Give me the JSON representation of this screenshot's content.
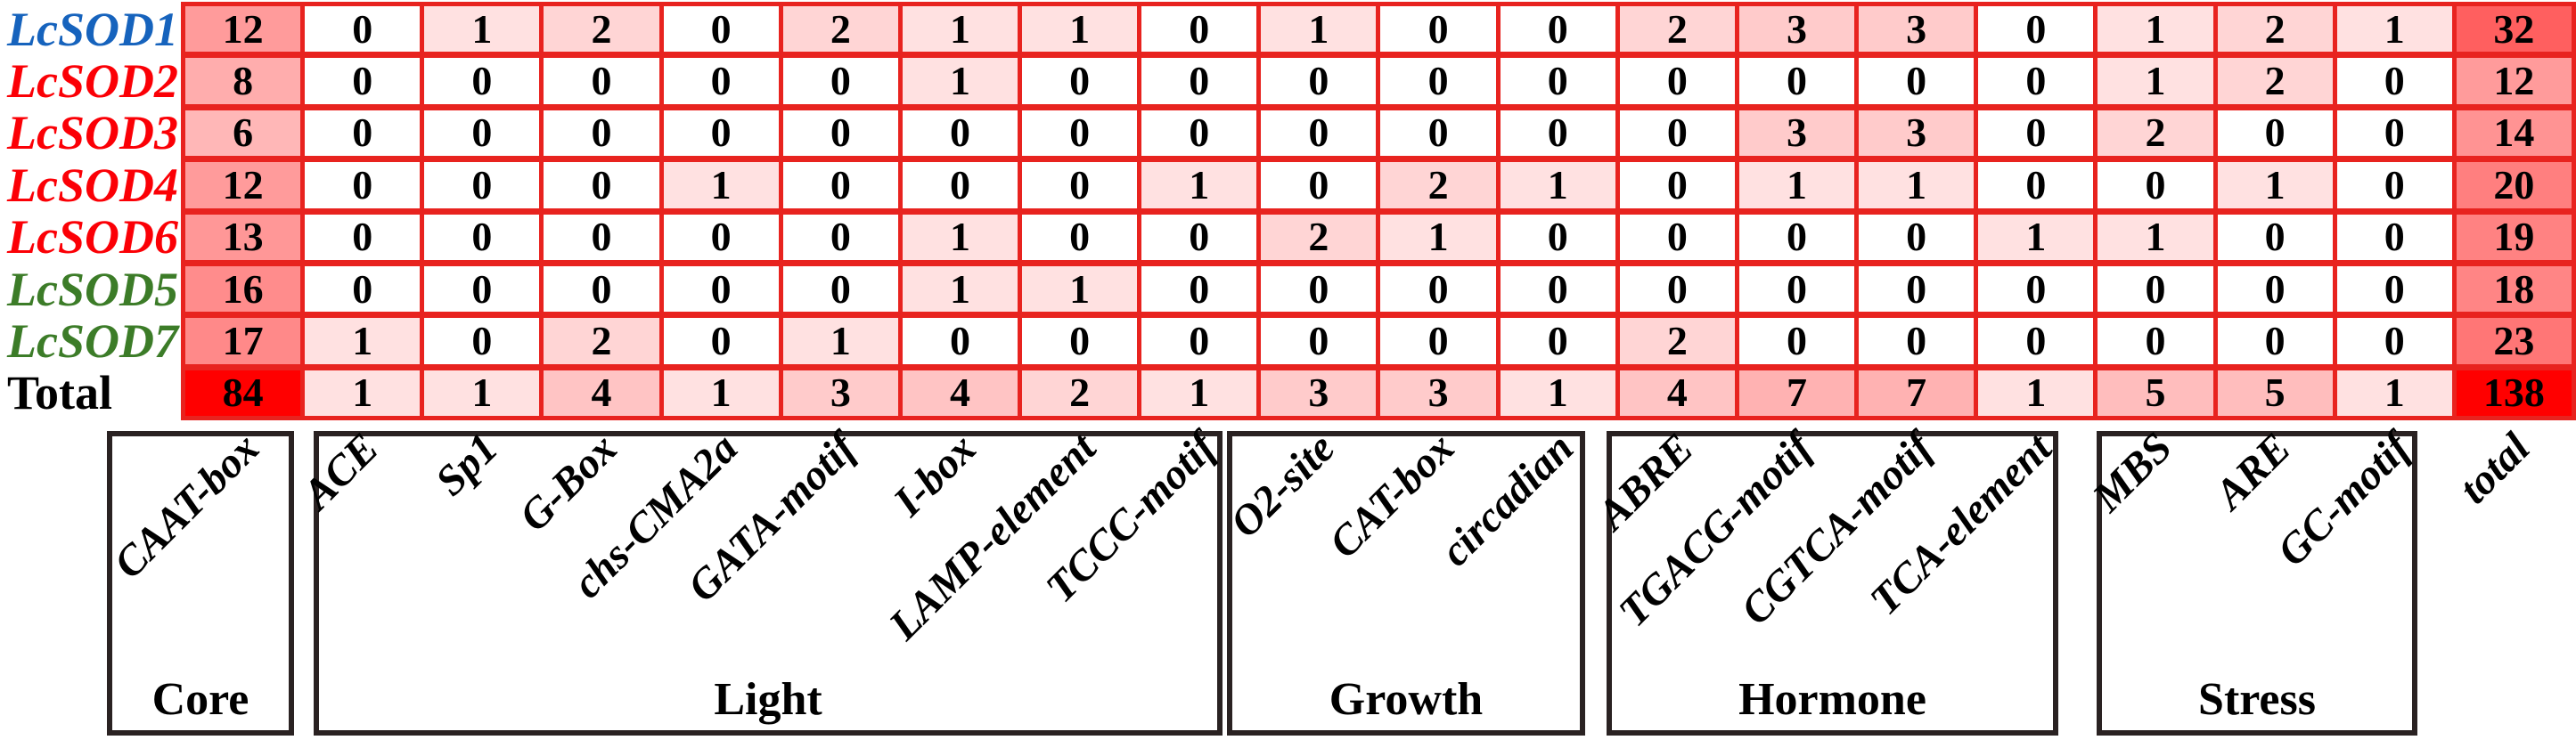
{
  "chart_data": {
    "type": "heatmap",
    "description_title": "",
    "columns": [
      "CAAT-box",
      "ACE",
      "Sp1",
      "G-Box",
      "chs-CMA2a",
      "GATA-motif",
      "I-box",
      "LAMP-element",
      "TCCC-motif",
      "O2-site",
      "CAT-box",
      "circadian",
      "ABRE",
      "TGACG-motif",
      "CGTCA-motif",
      "TCA-element",
      "MBS",
      "ARE",
      "GC-motif",
      "total"
    ],
    "rows": [
      {
        "label": "LcSOD1",
        "label_color": "#1663bd",
        "label_italic": true,
        "values": [
          12,
          0,
          1,
          2,
          0,
          2,
          1,
          1,
          0,
          1,
          0,
          0,
          2,
          3,
          3,
          0,
          1,
          2,
          1,
          32
        ]
      },
      {
        "label": "LcSOD2",
        "label_color": "#fb0006",
        "label_italic": true,
        "values": [
          8,
          0,
          0,
          0,
          0,
          0,
          1,
          0,
          0,
          0,
          0,
          0,
          0,
          0,
          0,
          0,
          1,
          2,
          0,
          12
        ]
      },
      {
        "label": "LcSOD3",
        "label_color": "#fb0006",
        "label_italic": true,
        "values": [
          6,
          0,
          0,
          0,
          0,
          0,
          0,
          0,
          0,
          0,
          0,
          0,
          0,
          3,
          3,
          0,
          2,
          0,
          0,
          14
        ]
      },
      {
        "label": "LcSOD4",
        "label_color": "#fb0006",
        "label_italic": true,
        "values": [
          12,
          0,
          0,
          0,
          1,
          0,
          0,
          0,
          1,
          0,
          2,
          1,
          0,
          1,
          1,
          0,
          0,
          1,
          0,
          20
        ]
      },
      {
        "label": "LcSOD6",
        "label_color": "#fb0006",
        "label_italic": true,
        "values": [
          13,
          0,
          0,
          0,
          0,
          0,
          1,
          0,
          0,
          2,
          1,
          0,
          0,
          0,
          0,
          1,
          1,
          0,
          0,
          19
        ]
      },
      {
        "label": "LcSOD5",
        "label_color": "#3c7c28",
        "label_italic": true,
        "values": [
          16,
          0,
          0,
          0,
          0,
          0,
          1,
          1,
          0,
          0,
          0,
          0,
          0,
          0,
          0,
          0,
          0,
          0,
          0,
          18
        ]
      },
      {
        "label": "LcSOD7",
        "label_color": "#3c7c28",
        "label_italic": true,
        "values": [
          17,
          1,
          0,
          2,
          0,
          1,
          0,
          0,
          0,
          0,
          0,
          0,
          2,
          0,
          0,
          0,
          0,
          0,
          0,
          23
        ]
      },
      {
        "label": "Total",
        "label_color": "#000000",
        "label_italic": false,
        "values": [
          84,
          1,
          1,
          4,
          1,
          3,
          4,
          2,
          1,
          3,
          3,
          1,
          4,
          7,
          7,
          1,
          5,
          5,
          1,
          138
        ]
      }
    ],
    "column_groups": [
      {
        "label": "Core",
        "col_start": 0,
        "col_end": 0
      },
      {
        "label": "Light",
        "col_start": 1,
        "col_end": 8
      },
      {
        "label": "Growth",
        "col_start": 9,
        "col_end": 11
      },
      {
        "label": "Hormone",
        "col_start": 12,
        "col_end": 15
      },
      {
        "label": "Stress",
        "col_start": 16,
        "col_end": 18
      }
    ],
    "colorscale": {
      "min_color": "#ffffff",
      "max_color": "#ff0000",
      "norm_max": 84,
      "exponent": 0.48
    },
    "value_min": 0,
    "value_max": 138,
    "legend_position": "none",
    "grid": "on"
  },
  "styles": {
    "grid_line": "#e8231f",
    "box_border": "#2a2222",
    "value_color": "#000000",
    "background": "#ffffff"
  }
}
